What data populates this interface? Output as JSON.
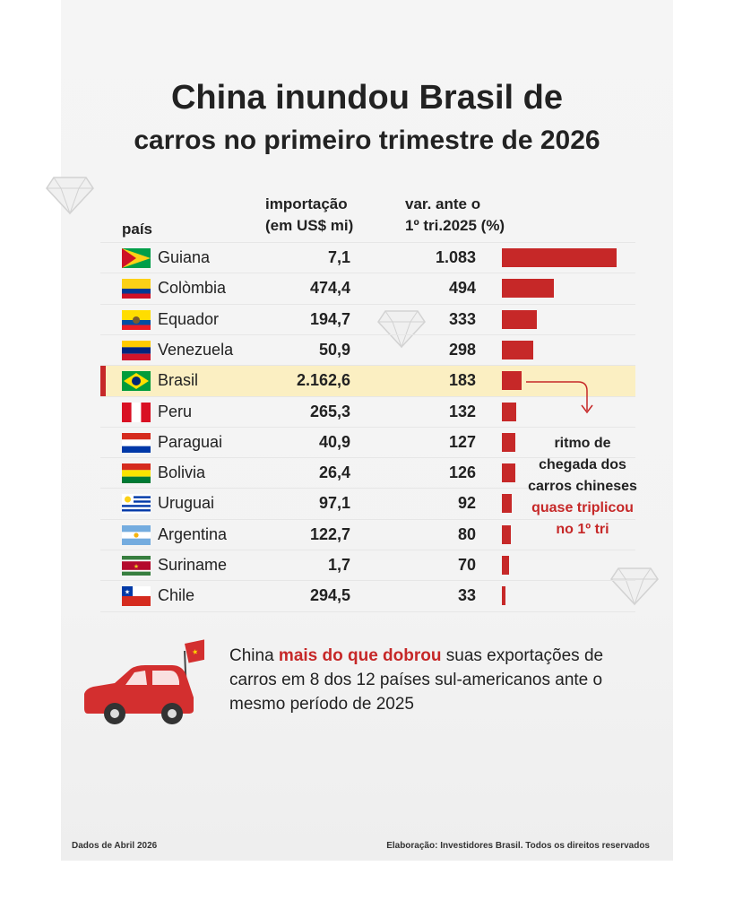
{
  "title_line1": "China inundou Brasil de",
  "title_line2": "carros no primeiro trimestre de 2026",
  "headers": {
    "country": "país",
    "import_1": "importação",
    "import_2": "(em US$ mi)",
    "var_1": "var. ante o",
    "var_2": "1º tri.2025 (%)"
  },
  "chart_data": {
    "type": "bar",
    "columns": [
      "país",
      "importação (em US$ mi)",
      "var. ante o 1º tri.2025 (%)"
    ],
    "rows": [
      {
        "country": "Guiana",
        "import": "7,1",
        "var": "1.083",
        "var_value": 1083,
        "flag": "guyana",
        "highlight": false
      },
      {
        "country": "Colòmbia",
        "import": "474,4",
        "var": "494",
        "var_value": 494,
        "flag": "colombia",
        "highlight": false
      },
      {
        "country": "Equador",
        "import": "194,7",
        "var": "333",
        "var_value": 333,
        "flag": "ecuador",
        "highlight": false
      },
      {
        "country": "Venezuela",
        "import": "50,9",
        "var": "298",
        "var_value": 298,
        "flag": "venezuela",
        "highlight": false
      },
      {
        "country": "Brasil",
        "import": "2.162,6",
        "var": "183",
        "var_value": 183,
        "flag": "brazil",
        "highlight": true
      },
      {
        "country": "Peru",
        "import": "265,3",
        "var": "132",
        "var_value": 132,
        "flag": "peru",
        "highlight": false
      },
      {
        "country": "Paraguai",
        "import": "40,9",
        "var": "127",
        "var_value": 127,
        "flag": "paraguay",
        "highlight": false
      },
      {
        "country": "Bolivia",
        "import": "26,4",
        "var": "126",
        "var_value": 126,
        "flag": "bolivia",
        "highlight": false
      },
      {
        "country": "Uruguai",
        "import": "97,1",
        "var": "92",
        "var_value": 92,
        "flag": "uruguay",
        "highlight": false
      },
      {
        "country": "Argentina",
        "import": "122,7",
        "var": "80",
        "var_value": 80,
        "flag": "argentina",
        "highlight": false
      },
      {
        "country": "Suriname",
        "import": "1,7",
        "var": "70",
        "var_value": 70,
        "flag": "suriname",
        "highlight": false
      },
      {
        "country": "Chile",
        "import": "294,5",
        "var": "33",
        "var_value": 33,
        "flag": "chile",
        "highlight": false
      }
    ],
    "bar_color": "#c62828",
    "highlight_color": "#fbefc2"
  },
  "note": {
    "line1": "ritmo de",
    "line2": "chegada dos",
    "line3": "carros chineses",
    "line4_red": "quase triplicou",
    "line5_red": "no 1º tri"
  },
  "footer": {
    "part1": "China ",
    "highlight": "mais do que dobrou",
    "part2": " suas exportações de carros em 8 dos 12 países sul-americanos ante o mesmo período de 2025"
  },
  "source_left": "Dados de Abril 2026",
  "source_right": "Elaboração: Investidores Brasil. Todos os direitos reservados",
  "icons": [
    "diamond-icon",
    "car-icon",
    "china-flag-icon"
  ]
}
